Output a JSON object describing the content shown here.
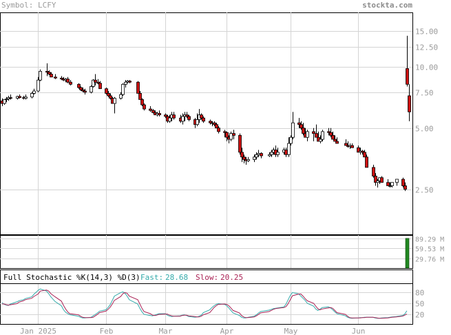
{
  "header": {
    "symbol_label": "Symbol: LCFY",
    "brand": "stockta.com"
  },
  "colors": {
    "up": "#ffffff",
    "down": "#cc1111",
    "wick": "#000000",
    "grid": "#d4d4d4",
    "frame": "#000000",
    "axis_text": "#9a9a9a",
    "volume_bar": "#228822",
    "fast_line": "#33aaaa",
    "slow_line": "#aa2255"
  },
  "chart_data": [
    {
      "type": "candlestick",
      "scale": "log",
      "ylim": [
        1.5,
        18.5
      ],
      "y_ticks": [
        15,
        12.5,
        10,
        7.5,
        5,
        2.5
      ],
      "y_tick_labels": [
        "15.00",
        "12.50",
        "10.00",
        "7.50",
        "5.00",
        "2.50"
      ],
      "x_ticks": [
        {
          "label": "Jan 2025",
          "date": "2025-01-02"
        },
        {
          "label": "Feb",
          "date": "2025-02-03"
        },
        {
          "label": "Mar",
          "date": "2025-03-03"
        },
        {
          "label": "Apr",
          "date": "2025-04-01"
        },
        {
          "label": "May",
          "date": "2025-05-01"
        },
        {
          "label": "Jun",
          "date": "2025-06-02"
        }
      ],
      "dates": [
        "2024-12-16",
        "2024-12-17",
        "2024-12-18",
        "2024-12-19",
        "2024-12-20",
        "2024-12-23",
        "2024-12-24",
        "2024-12-26",
        "2024-12-27",
        "2024-12-30",
        "2024-12-31",
        "2025-01-02",
        "2025-01-03",
        "2025-01-06",
        "2025-01-07",
        "2025-01-08",
        "2025-01-10",
        "2025-01-13",
        "2025-01-14",
        "2025-01-15",
        "2025-01-16",
        "2025-01-17",
        "2025-01-21",
        "2025-01-22",
        "2025-01-23",
        "2025-01-24",
        "2025-01-27",
        "2025-01-28",
        "2025-01-29",
        "2025-01-30",
        "2025-01-31",
        "2025-02-03",
        "2025-02-04",
        "2025-02-05",
        "2025-02-06",
        "2025-02-07",
        "2025-02-10",
        "2025-02-11",
        "2025-02-12",
        "2025-02-13",
        "2025-02-14",
        "2025-02-18",
        "2025-02-19",
        "2025-02-20",
        "2025-02-21",
        "2025-02-24",
        "2025-02-25",
        "2025-02-26",
        "2025-02-27",
        "2025-02-28",
        "2025-03-03",
        "2025-03-04",
        "2025-03-05",
        "2025-03-06",
        "2025-03-07",
        "2025-03-10",
        "2025-03-11",
        "2025-03-12",
        "2025-03-13",
        "2025-03-14",
        "2025-03-17",
        "2025-03-18",
        "2025-03-19",
        "2025-03-20",
        "2025-03-21",
        "2025-03-24",
        "2025-03-25",
        "2025-03-26",
        "2025-03-27",
        "2025-03-28",
        "2025-03-31",
        "2025-04-01",
        "2025-04-02",
        "2025-04-03",
        "2025-04-04",
        "2025-04-07",
        "2025-04-08",
        "2025-04-09",
        "2025-04-10",
        "2025-04-11",
        "2025-04-14",
        "2025-04-15",
        "2025-04-16",
        "2025-04-17",
        "2025-04-21",
        "2025-04-22",
        "2025-04-23",
        "2025-04-24",
        "2025-04-25",
        "2025-04-28",
        "2025-04-29",
        "2025-04-30",
        "2025-05-01",
        "2025-05-02",
        "2025-05-05",
        "2025-05-06",
        "2025-05-07",
        "2025-05-08",
        "2025-05-09",
        "2025-05-12",
        "2025-05-13",
        "2025-05-14",
        "2025-05-15",
        "2025-05-16",
        "2025-05-19",
        "2025-05-20",
        "2025-05-21",
        "2025-05-22",
        "2025-05-23",
        "2025-05-27",
        "2025-05-28",
        "2025-05-29",
        "2025-05-30",
        "2025-06-02",
        "2025-06-03",
        "2025-06-04",
        "2025-06-05",
        "2025-06-06",
        "2025-06-09",
        "2025-06-10",
        "2025-06-11",
        "2025-06-12",
        "2025-06-13",
        "2025-06-16",
        "2025-06-17",
        "2025-06-18",
        "2025-06-20",
        "2025-06-23",
        "2025-06-24",
        "2025-06-25",
        "2025-06-26"
      ],
      "open": [
        6.8,
        6.6,
        6.9,
        6.95,
        7.05,
        7.0,
        7.15,
        7.05,
        7.0,
        7.1,
        7.4,
        7.6,
        8.6,
        9.5,
        9.4,
        9.2,
        8.9,
        8.8,
        8.7,
        8.6,
        8.7,
        8.4,
        8.2,
        7.9,
        7.7,
        7.6,
        7.5,
        8.0,
        8.6,
        8.4,
        8.3,
        7.8,
        7.4,
        7.2,
        7.0,
        6.6,
        7.0,
        7.3,
        8.2,
        8.4,
        8.5,
        8.4,
        7.4,
        6.9,
        6.5,
        6.2,
        6.1,
        5.95,
        5.8,
        5.9,
        5.8,
        5.7,
        5.4,
        5.6,
        5.8,
        5.6,
        5.4,
        5.7,
        5.8,
        5.7,
        5.5,
        5.2,
        5.5,
        5.8,
        5.6,
        5.4,
        5.3,
        5.3,
        5.2,
        5.0,
        4.8,
        4.75,
        4.5,
        4.4,
        4.7,
        4.6,
        3.8,
        3.6,
        3.5,
        3.45,
        3.5,
        3.6,
        3.7,
        3.75,
        3.65,
        3.7,
        3.8,
        3.9,
        3.7,
        3.8,
        3.9,
        3.7,
        4.2,
        4.5,
        5.3,
        5.2,
        5.0,
        4.7,
        4.5,
        4.8,
        4.7,
        4.5,
        4.3,
        4.4,
        4.8,
        4.75,
        4.6,
        4.4,
        4.3,
        4.2,
        4.1,
        4.05,
        4.1,
        4.0,
        3.8,
        3.85,
        3.8,
        3.6,
        3.2,
        2.9,
        2.7,
        2.75,
        2.85,
        2.7,
        2.6,
        2.6,
        2.7,
        2.8,
        2.6,
        9.8,
        7.2
      ],
      "high": [
        7.0,
        6.9,
        7.1,
        7.2,
        7.3,
        7.2,
        7.3,
        7.2,
        7.3,
        7.5,
        7.8,
        8.9,
        9.7,
        10.4,
        9.6,
        9.4,
        9.2,
        9.0,
        8.9,
        8.8,
        8.9,
        8.6,
        8.3,
        8.0,
        7.9,
        7.8,
        8.1,
        8.7,
        9.2,
        8.7,
        8.5,
        7.9,
        7.6,
        7.4,
        7.1,
        7.1,
        7.5,
        8.3,
        8.6,
        8.6,
        8.6,
        8.5,
        7.6,
        7.0,
        6.6,
        6.4,
        6.2,
        6.1,
        6.0,
        6.1,
        5.9,
        5.8,
        5.8,
        6.0,
        6.0,
        5.8,
        5.9,
        6.0,
        6.0,
        5.8,
        5.6,
        5.9,
        6.2,
        5.9,
        5.7,
        5.5,
        5.4,
        5.4,
        5.3,
        5.1,
        4.9,
        4.8,
        4.6,
        4.8,
        4.9,
        4.7,
        4.0,
        3.7,
        3.6,
        3.6,
        3.7,
        3.8,
        3.9,
        3.8,
        3.8,
        3.9,
        4.0,
        4.1,
        4.0,
        4.0,
        4.0,
        4.5,
        4.6,
        6.0,
        5.6,
        5.4,
        5.3,
        5.0,
        4.9,
        5.0,
        5.2,
        4.8,
        4.6,
        4.9,
        5.0,
        5.0,
        4.8,
        4.6,
        4.5,
        4.4,
        4.3,
        4.2,
        4.2,
        4.1,
        4.0,
        3.9,
        3.9,
        3.7,
        3.3,
        3.0,
        2.8,
        2.8,
        2.9,
        2.8,
        2.7,
        2.7,
        2.8,
        2.85,
        2.7,
        14.2,
        8.2
      ],
      "low": [
        6.4,
        6.5,
        6.7,
        6.8,
        6.9,
        6.9,
        7.0,
        6.9,
        6.9,
        7.0,
        7.3,
        7.5,
        8.5,
        9.0,
        9.1,
        8.9,
        8.7,
        8.6,
        8.5,
        8.4,
        8.3,
        8.1,
        7.8,
        7.6,
        7.5,
        7.3,
        7.4,
        7.9,
        8.1,
        8.2,
        7.8,
        7.3,
        7.1,
        6.9,
        6.6,
        5.9,
        6.9,
        7.2,
        7.9,
        8.3,
        8.3,
        7.4,
        6.9,
        6.4,
        6.1,
        6.0,
        5.9,
        5.8,
        5.7,
        5.7,
        5.6,
        5.3,
        5.3,
        5.4,
        5.5,
        5.3,
        5.2,
        5.4,
        5.6,
        5.4,
        5.0,
        5.1,
        5.3,
        5.5,
        5.3,
        5.2,
        5.1,
        5.1,
        5.0,
        4.7,
        4.5,
        4.3,
        4.2,
        4.3,
        4.4,
        3.7,
        3.4,
        3.35,
        3.3,
        3.4,
        3.4,
        3.5,
        3.6,
        3.55,
        3.6,
        3.6,
        3.7,
        3.6,
        3.6,
        3.7,
        3.6,
        3.6,
        4.1,
        4.4,
        5.0,
        4.9,
        4.6,
        4.5,
        4.3,
        4.3,
        4.6,
        4.3,
        4.2,
        4.3,
        4.6,
        4.5,
        4.4,
        4.3,
        4.2,
        4.1,
        4.0,
        3.95,
        4.0,
        3.9,
        3.7,
        3.7,
        3.6,
        3.2,
        2.85,
        2.6,
        2.55,
        2.65,
        2.7,
        2.6,
        2.55,
        2.55,
        2.6,
        2.55,
        2.45,
        8.0,
        5.4
      ],
      "close": [
        6.6,
        6.9,
        6.95,
        7.05,
        7.0,
        7.15,
        7.05,
        7.0,
        7.1,
        7.4,
        7.6,
        8.6,
        9.5,
        9.4,
        9.2,
        8.9,
        8.8,
        8.7,
        8.6,
        8.7,
        8.4,
        8.2,
        7.9,
        7.7,
        7.6,
        7.5,
        8.0,
        8.6,
        8.4,
        8.3,
        7.8,
        7.4,
        7.2,
        7.0,
        6.6,
        7.0,
        7.3,
        8.2,
        8.4,
        8.5,
        8.4,
        7.4,
        6.9,
        6.5,
        6.2,
        6.1,
        5.95,
        5.8,
        5.9,
        5.8,
        5.7,
        5.4,
        5.6,
        5.8,
        5.6,
        5.4,
        5.7,
        5.8,
        5.7,
        5.5,
        5.2,
        5.5,
        5.8,
        5.6,
        5.4,
        5.3,
        5.3,
        5.2,
        5.0,
        4.8,
        4.75,
        4.5,
        4.4,
        4.7,
        4.6,
        3.8,
        3.6,
        3.5,
        3.45,
        3.5,
        3.6,
        3.7,
        3.75,
        3.65,
        3.7,
        3.8,
        3.9,
        3.7,
        3.8,
        3.9,
        3.7,
        4.2,
        4.5,
        5.3,
        5.2,
        5.0,
        4.7,
        4.5,
        4.8,
        4.7,
        4.5,
        4.3,
        4.4,
        4.8,
        4.75,
        4.6,
        4.4,
        4.3,
        4.2,
        4.1,
        4.05,
        4.1,
        4.0,
        3.8,
        3.85,
        3.8,
        3.6,
        3.2,
        2.9,
        2.7,
        2.75,
        2.85,
        2.7,
        2.6,
        2.6,
        2.7,
        2.8,
        2.6,
        2.5,
        8.2,
        6.0
      ]
    },
    {
      "type": "bar",
      "title": "Volume",
      "y_tick_labels": [
        "89.29 M",
        "59.53 M",
        "29.76 M"
      ],
      "y_ticks": [
        89.29,
        59.53,
        29.76
      ],
      "ylim": [
        0,
        100
      ],
      "bars": [
        {
          "date": "2025-06-25",
          "value": 90
        }
      ]
    },
    {
      "type": "line",
      "title": "Full Stochastic %K(14,3) %D(3)",
      "fast_label": "Fast:",
      "fast_value": "28.68",
      "slow_label": "Slow:",
      "slow_value": "20.25",
      "ylim": [
        0,
        100
      ],
      "y_ticks": [
        80,
        50,
        20
      ],
      "y_tick_labels": [
        "80",
        "50",
        "20"
      ],
      "series": [
        {
          "name": "Fast",
          "values": [
            52,
            47,
            45,
            44,
            48,
            54,
            57,
            60,
            63,
            68,
            75,
            86,
            90,
            84,
            77,
            68,
            55,
            43,
            32,
            25,
            21,
            18,
            14,
            11,
            9,
            9,
            11,
            15,
            19,
            23,
            28,
            32,
            38,
            46,
            58,
            70,
            80,
            82,
            78,
            70,
            60,
            48,
            36,
            26,
            19,
            16,
            15,
            17,
            19,
            21,
            21,
            17,
            14,
            13,
            14,
            15,
            17,
            18,
            16,
            13,
            11,
            12,
            14,
            17,
            24,
            32,
            38,
            43,
            47,
            49,
            47,
            43,
            37,
            30,
            23,
            16,
            11,
            9,
            9,
            11,
            14,
            18,
            23,
            27,
            31,
            33,
            35,
            36,
            37,
            40,
            48,
            60,
            72,
            80,
            76,
            70,
            64,
            58,
            50,
            42,
            34,
            30,
            33,
            38,
            40,
            37,
            32,
            26,
            21,
            15,
            11,
            9,
            8,
            9,
            10,
            10,
            11,
            11,
            11,
            9,
            8,
            8,
            9,
            10,
            11,
            12,
            13,
            16,
            20,
            29
          ]
        },
        {
          "name": "Slow",
          "values": [
            48,
            48,
            46,
            45,
            46,
            49,
            53,
            57,
            60,
            64,
            69,
            76,
            84,
            87,
            84,
            77,
            68,
            56,
            44,
            34,
            26,
            21,
            18,
            14,
            11,
            10,
            10,
            11,
            15,
            19,
            24,
            28,
            33,
            39,
            48,
            58,
            69,
            77,
            80,
            78,
            70,
            60,
            48,
            36,
            27,
            21,
            17,
            16,
            17,
            19,
            20,
            20,
            17,
            15,
            14,
            14,
            16,
            17,
            17,
            15,
            13,
            12,
            12,
            14,
            18,
            24,
            31,
            38,
            43,
            47,
            48,
            47,
            43,
            37,
            30,
            23,
            16,
            12,
            10,
            10,
            12,
            15,
            19,
            23,
            27,
            30,
            33,
            35,
            36,
            38,
            41,
            49,
            60,
            71,
            76,
            76,
            70,
            63,
            57,
            50,
            42,
            35,
            32,
            34,
            37,
            38,
            36,
            30,
            24,
            19,
            14,
            10,
            9,
            9,
            9,
            10,
            10,
            11,
            11,
            10,
            9,
            8,
            8,
            9,
            10,
            11,
            12,
            14,
            17,
            20
          ]
        }
      ]
    }
  ]
}
